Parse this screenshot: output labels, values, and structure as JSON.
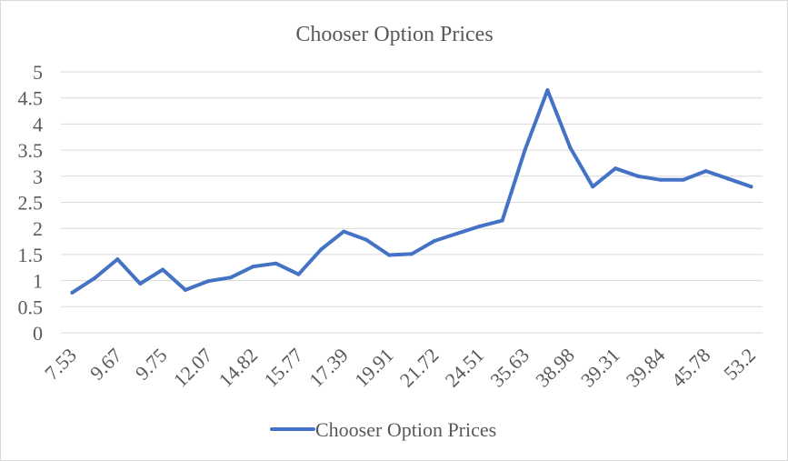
{
  "chart_data": {
    "type": "line",
    "title": "Chooser Option Prices",
    "xlabel": "",
    "ylabel": "",
    "ylim": [
      0,
      5
    ],
    "y_ticks": [
      "0",
      "0.5",
      "1",
      "1.5",
      "2",
      "2.5",
      "3",
      "3.5",
      "4",
      "4.5",
      "5"
    ],
    "y_tick_values": [
      0,
      0.5,
      1,
      1.5,
      2,
      2.5,
      3,
      3.5,
      4,
      4.5,
      5
    ],
    "x_tick_labels": [
      "7.53",
      "9.67",
      "9.75",
      "12.07",
      "14.82",
      "15.77",
      "17.39",
      "19.91",
      "21.72",
      "24.51",
      "35.63",
      "38.98",
      "39.31",
      "39.84",
      "45.78",
      "53.2"
    ],
    "x_tick_every": 2,
    "grid": true,
    "legend_position": "bottom",
    "series": [
      {
        "name": "Chooser Option Prices",
        "color": "#4472c4",
        "values": [
          0.77,
          1.05,
          1.41,
          0.94,
          1.21,
          0.82,
          0.99,
          1.06,
          1.27,
          1.33,
          1.12,
          1.6,
          1.94,
          1.78,
          1.49,
          1.51,
          1.76,
          1.9,
          2.04,
          2.15,
          3.5,
          4.65,
          3.55,
          2.8,
          3.15,
          3.0,
          2.93,
          2.93,
          3.1,
          2.95,
          2.8
        ]
      }
    ]
  }
}
